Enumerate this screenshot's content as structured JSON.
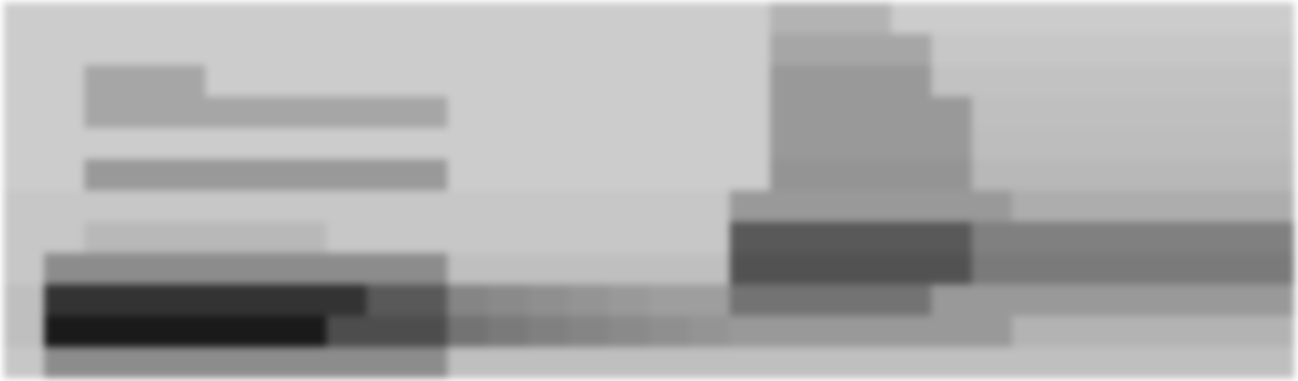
{
  "chart_data": {
    "type": "heatmap",
    "tick_labels": false,
    "color_range": [
      0,
      100
    ],
    "cells": [
      [
        20,
        20,
        20,
        20,
        20,
        20,
        20,
        20,
        20,
        20,
        20,
        20,
        20,
        20,
        20,
        20,
        20,
        20,
        20,
        30,
        30,
        30,
        20,
        20,
        20,
        20,
        20,
        20,
        20,
        20,
        20,
        20
      ],
      [
        20,
        20,
        20,
        20,
        20,
        20,
        20,
        20,
        20,
        20,
        20,
        20,
        20,
        20,
        20,
        20,
        20,
        20,
        20,
        35,
        35,
        35,
        35,
        22,
        22,
        22,
        22,
        22,
        22,
        22,
        22,
        22
      ],
      [
        20,
        20,
        35,
        35,
        35,
        20,
        20,
        20,
        20,
        20,
        20,
        20,
        20,
        20,
        20,
        20,
        20,
        20,
        20,
        40,
        40,
        40,
        40,
        24,
        24,
        24,
        24,
        24,
        24,
        24,
        24,
        24
      ],
      [
        20,
        20,
        35,
        35,
        35,
        35,
        35,
        35,
        35,
        35,
        35,
        20,
        20,
        20,
        20,
        20,
        20,
        20,
        20,
        40,
        40,
        40,
        40,
        40,
        25,
        25,
        25,
        25,
        25,
        25,
        25,
        25
      ],
      [
        20,
        20,
        20,
        20,
        20,
        20,
        20,
        20,
        20,
        20,
        20,
        20,
        20,
        20,
        20,
        20,
        20,
        20,
        20,
        40,
        40,
        40,
        40,
        40,
        26,
        26,
        26,
        26,
        26,
        26,
        26,
        26
      ],
      [
        20,
        20,
        40,
        40,
        40,
        40,
        40,
        40,
        40,
        40,
        40,
        20,
        20,
        20,
        20,
        20,
        20,
        20,
        20,
        42,
        42,
        42,
        42,
        42,
        28,
        28,
        28,
        28,
        28,
        28,
        28,
        28
      ],
      [
        22,
        22,
        22,
        22,
        22,
        22,
        22,
        22,
        22,
        22,
        22,
        22,
        22,
        22,
        22,
        22,
        22,
        22,
        40,
        40,
        40,
        40,
        40,
        40,
        40,
        32,
        32,
        32,
        32,
        32,
        32,
        32
      ],
      [
        22,
        22,
        28,
        28,
        28,
        28,
        28,
        28,
        22,
        22,
        22,
        22,
        22,
        22,
        22,
        22,
        22,
        22,
        65,
        65,
        65,
        65,
        65,
        65,
        50,
        50,
        50,
        50,
        50,
        50,
        50,
        50
      ],
      [
        22,
        45,
        45,
        45,
        45,
        45,
        45,
        45,
        45,
        45,
        45,
        25,
        25,
        25,
        25,
        25,
        25,
        25,
        68,
        68,
        68,
        68,
        68,
        68,
        52,
        52,
        52,
        52,
        52,
        52,
        52,
        52
      ],
      [
        25,
        80,
        80,
        80,
        80,
        80,
        80,
        80,
        80,
        65,
        65,
        48,
        46,
        44,
        42,
        40,
        38,
        38,
        55,
        55,
        55,
        55,
        55,
        40,
        40,
        40,
        40,
        40,
        40,
        40,
        40,
        40
      ],
      [
        25,
        90,
        90,
        90,
        90,
        90,
        90,
        90,
        70,
        70,
        70,
        55,
        52,
        50,
        48,
        46,
        44,
        42,
        40,
        40,
        40,
        40,
        40,
        40,
        40,
        30,
        30,
        30,
        30,
        30,
        30,
        30
      ],
      [
        22,
        45,
        45,
        45,
        45,
        45,
        45,
        45,
        45,
        45,
        45,
        25,
        25,
        25,
        25,
        25,
        25,
        25,
        25,
        25,
        25,
        25,
        25,
        25,
        25,
        25,
        25,
        25,
        25,
        25,
        25,
        25
      ]
    ]
  }
}
